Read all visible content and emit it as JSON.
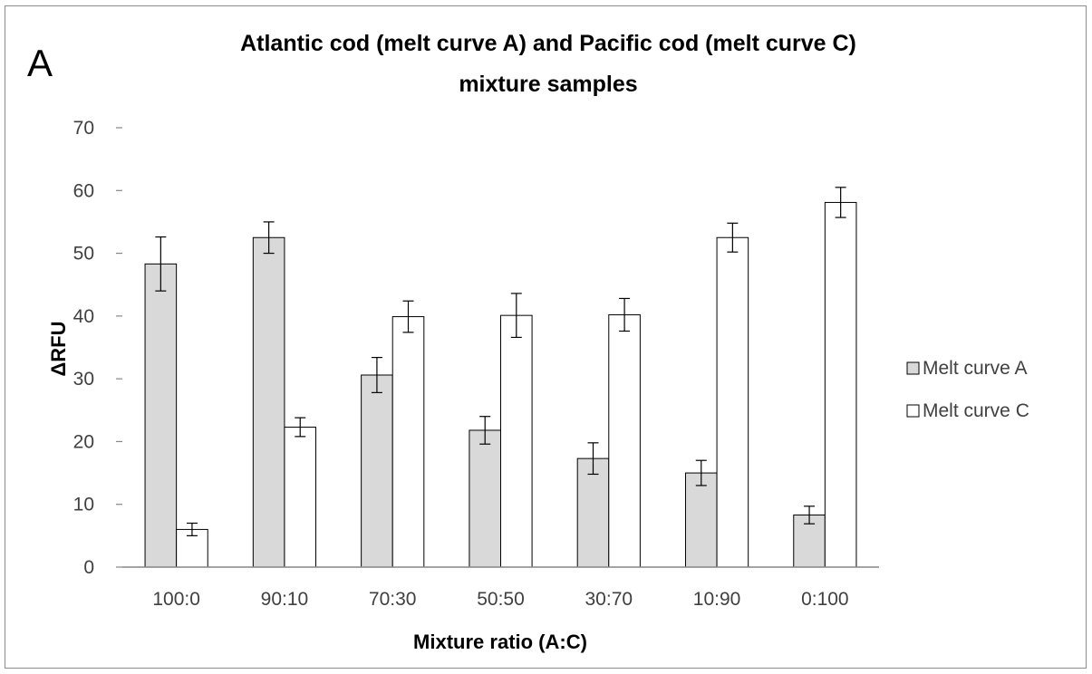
{
  "panel_label": "A",
  "chart_data": {
    "type": "bar",
    "title_lines": [
      "Atlantic cod (melt curve A) and Pacific cod (melt curve C)",
      "mixture samples"
    ],
    "xlabel": "Mixture ratio (A:C)",
    "ylabel": "ΔRFU",
    "ylim": [
      0,
      70
    ],
    "yticks": [
      0,
      10,
      20,
      30,
      40,
      50,
      60,
      70
    ],
    "categories": [
      "100:0",
      "90:10",
      "70:30",
      "50:50",
      "30:70",
      "10:90",
      "0:100"
    ],
    "series": [
      {
        "name": "Melt curve A",
        "color": "#d9d9d9",
        "values": [
          48.3,
          52.5,
          30.6,
          21.8,
          17.3,
          15.0,
          8.3
        ],
        "errors": [
          4.3,
          2.5,
          2.8,
          2.2,
          2.5,
          2.0,
          1.4
        ]
      },
      {
        "name": "Melt curve C",
        "color": "#ffffff",
        "values": [
          6.0,
          22.3,
          39.9,
          40.1,
          40.2,
          52.5,
          58.1
        ],
        "errors": [
          1.0,
          1.5,
          2.5,
          3.5,
          2.6,
          2.3,
          2.4
        ]
      }
    ],
    "grid": false,
    "legend": "right"
  }
}
